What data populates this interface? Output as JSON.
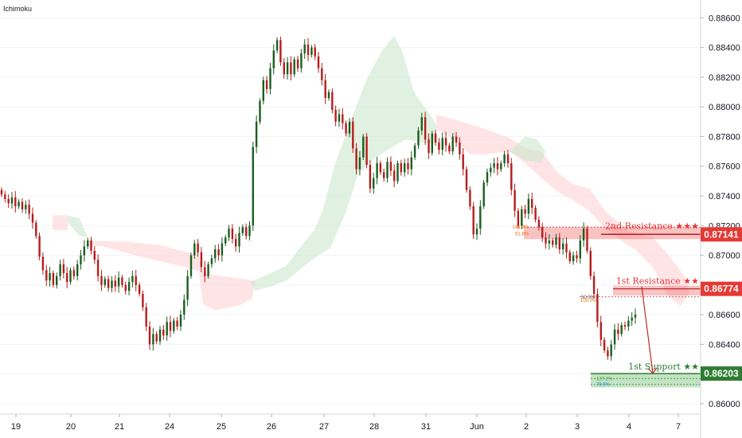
{
  "indicator_label": "Ichimoku",
  "chart_data": {
    "type": "candlestick",
    "x_ticks": [
      "19",
      "20",
      "21",
      "24",
      "25",
      "26",
      "27",
      "28",
      "31",
      "Jun",
      "2",
      "3",
      "4",
      "7"
    ],
    "y_ticks": [
      "0.88600",
      "0.88400",
      "0.88200",
      "0.88000",
      "0.87800",
      "0.87600",
      "0.87400",
      "0.87200",
      "0.87000",
      "0.86800",
      "0.86600",
      "0.86400",
      "0.86200",
      "0.86000"
    ],
    "ylim": [
      0.8593,
      0.8872
    ],
    "closes": [
      0.8741,
      0.8738,
      0.8735,
      0.8739,
      0.8733,
      0.8736,
      0.8731,
      0.8734,
      0.8728,
      0.8722,
      0.8713,
      0.8699,
      0.869,
      0.8683,
      0.8688,
      0.868,
      0.8686,
      0.8694,
      0.8688,
      0.8682,
      0.869,
      0.8686,
      0.8694,
      0.87,
      0.8706,
      0.871,
      0.8703,
      0.8697,
      0.8686,
      0.868,
      0.8684,
      0.8678,
      0.8683,
      0.8679,
      0.8685,
      0.868,
      0.8676,
      0.8682,
      0.8686,
      0.868,
      0.8674,
      0.8665,
      0.8652,
      0.864,
      0.8647,
      0.8642,
      0.865,
      0.8646,
      0.8655,
      0.8649,
      0.8656,
      0.8652,
      0.866,
      0.867,
      0.8686,
      0.87,
      0.8708,
      0.8702,
      0.8692,
      0.8686,
      0.8694,
      0.8698,
      0.8704,
      0.87,
      0.8708,
      0.8712,
      0.8718,
      0.8711,
      0.8706,
      0.8715,
      0.8719,
      0.8713,
      0.872,
      0.8773,
      0.879,
      0.8804,
      0.8818,
      0.8812,
      0.8826,
      0.8838,
      0.8845,
      0.883,
      0.8822,
      0.883,
      0.8822,
      0.8832,
      0.8826,
      0.8836,
      0.8842,
      0.8835,
      0.884,
      0.8834,
      0.8826,
      0.8818,
      0.8806,
      0.881,
      0.8798,
      0.879,
      0.8795,
      0.8789,
      0.8782,
      0.879,
      0.8772,
      0.8758,
      0.8766,
      0.878,
      0.8761,
      0.8745,
      0.8752,
      0.8762,
      0.8756,
      0.8752,
      0.8763,
      0.8757,
      0.875,
      0.8762,
      0.8756,
      0.8762,
      0.8758,
      0.8766,
      0.8774,
      0.8784,
      0.8793,
      0.8778,
      0.8769,
      0.8782,
      0.8776,
      0.8771,
      0.8779,
      0.8774,
      0.877,
      0.878,
      0.8776,
      0.8768,
      0.8758,
      0.8744,
      0.8733,
      0.8714,
      0.8718,
      0.8733,
      0.8749,
      0.8756,
      0.8759,
      0.8762,
      0.8758,
      0.8762,
      0.8768,
      0.8762,
      0.8744,
      0.873,
      0.872,
      0.8731,
      0.8728,
      0.8738,
      0.8732,
      0.8724,
      0.8719,
      0.8712,
      0.8708,
      0.871,
      0.8707,
      0.8712,
      0.8704,
      0.8708,
      0.8702,
      0.8696,
      0.87,
      0.8698,
      0.871,
      0.8718,
      0.8703,
      0.8686,
      0.8674,
      0.8655,
      0.8643,
      0.8636,
      0.8632,
      0.864,
      0.865,
      0.8647,
      0.8653,
      0.8652,
      0.8656,
      0.8658,
      0.866
    ],
    "levels": [
      {
        "label": "2nd Resistance ★★★",
        "value": "0.87141",
        "color": "#e53935"
      },
      {
        "label": "1st Resistance ★★",
        "value": "0.86774",
        "color": "#e53935"
      },
      {
        "label": "1st Support ★★",
        "value": "0.86203",
        "color": "#2e7d32"
      }
    ],
    "fib_labels": {
      "r2_top": "161.8%",
      "r2_bottom": "61.8%",
      "r1_top": "50.0%",
      "r1_bottom": "100.0%",
      "s1_top": "127.2%",
      "s1_bottom": "78.6%"
    },
    "bull_color": "#1b5e20",
    "bear_color": "#b71c1c",
    "cloud_bull_color": "#c8e6c9",
    "cloud_bear_color": "#ffcdd2"
  }
}
